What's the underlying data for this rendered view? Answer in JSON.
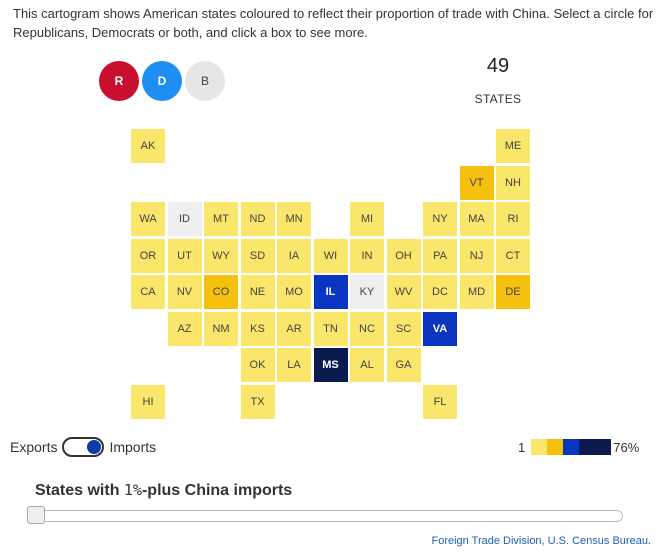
{
  "intro_text": "This cartogram shows American states coloured to reflect their proportion of trade with China. Select a circle for Republicans, Democrats or both, and click a box to see more.",
  "party_buttons": {
    "republican": "R",
    "democrat": "D",
    "both": "B"
  },
  "counter": {
    "value": "49",
    "label": "STATES"
  },
  "colors": {
    "light_yellow": "#f9e66a",
    "gold": "#f5c10e",
    "blue": "#0a35c0",
    "navy": "#0b1b4f",
    "grey": "#eeeeee"
  },
  "states": [
    {
      "code": "AK",
      "fill": "light_yellow"
    },
    {
      "code": "ME",
      "fill": "light_yellow"
    },
    {
      "code": "VT",
      "fill": "gold"
    },
    {
      "code": "NH",
      "fill": "light_yellow"
    },
    {
      "code": "WA",
      "fill": "light_yellow"
    },
    {
      "code": "ID",
      "fill": "grey"
    },
    {
      "code": "MT",
      "fill": "light_yellow"
    },
    {
      "code": "ND",
      "fill": "light_yellow"
    },
    {
      "code": "MN",
      "fill": "light_yellow"
    },
    {
      "code": "MI",
      "fill": "light_yellow"
    },
    {
      "code": "NY",
      "fill": "light_yellow"
    },
    {
      "code": "MA",
      "fill": "light_yellow"
    },
    {
      "code": "RI",
      "fill": "light_yellow"
    },
    {
      "code": "OR",
      "fill": "light_yellow"
    },
    {
      "code": "UT",
      "fill": "light_yellow"
    },
    {
      "code": "WY",
      "fill": "light_yellow"
    },
    {
      "code": "SD",
      "fill": "light_yellow"
    },
    {
      "code": "IA",
      "fill": "light_yellow"
    },
    {
      "code": "WI",
      "fill": "light_yellow"
    },
    {
      "code": "IN",
      "fill": "light_yellow"
    },
    {
      "code": "OH",
      "fill": "light_yellow"
    },
    {
      "code": "PA",
      "fill": "light_yellow"
    },
    {
      "code": "NJ",
      "fill": "light_yellow"
    },
    {
      "code": "CT",
      "fill": "light_yellow"
    },
    {
      "code": "CA",
      "fill": "light_yellow"
    },
    {
      "code": "NV",
      "fill": "light_yellow"
    },
    {
      "code": "CO",
      "fill": "gold"
    },
    {
      "code": "NE",
      "fill": "light_yellow"
    },
    {
      "code": "MO",
      "fill": "light_yellow"
    },
    {
      "code": "IL",
      "fill": "blue"
    },
    {
      "code": "KY",
      "fill": "grey"
    },
    {
      "code": "WV",
      "fill": "light_yellow"
    },
    {
      "code": "DC",
      "fill": "light_yellow"
    },
    {
      "code": "MD",
      "fill": "light_yellow"
    },
    {
      "code": "DE",
      "fill": "gold"
    },
    {
      "code": "AZ",
      "fill": "light_yellow"
    },
    {
      "code": "NM",
      "fill": "light_yellow"
    },
    {
      "code": "KS",
      "fill": "light_yellow"
    },
    {
      "code": "AR",
      "fill": "light_yellow"
    },
    {
      "code": "TN",
      "fill": "light_yellow"
    },
    {
      "code": "NC",
      "fill": "light_yellow"
    },
    {
      "code": "SC",
      "fill": "light_yellow"
    },
    {
      "code": "VA",
      "fill": "blue"
    },
    {
      "code": "OK",
      "fill": "light_yellow"
    },
    {
      "code": "LA",
      "fill": "light_yellow"
    },
    {
      "code": "MS",
      "fill": "navy"
    },
    {
      "code": "AL",
      "fill": "light_yellow"
    },
    {
      "code": "GA",
      "fill": "light_yellow"
    },
    {
      "code": "HI",
      "fill": "light_yellow"
    },
    {
      "code": "TX",
      "fill": "light_yellow"
    },
    {
      "code": "FL",
      "fill": "light_yellow"
    }
  ],
  "toggle": {
    "left_label": "Exports",
    "right_label": "Imports",
    "state": "Imports"
  },
  "legend": {
    "min": "1",
    "max": "76%",
    "swatches": [
      "light_yellow",
      "gold",
      "blue",
      "navy"
    ]
  },
  "slider": {
    "title_prefix": "States with ",
    "title_pct": "1%",
    "title_suffix": "-plus China imports",
    "value": 0
  },
  "source": "Foreign Trade Division, U.S. Census Bureau."
}
